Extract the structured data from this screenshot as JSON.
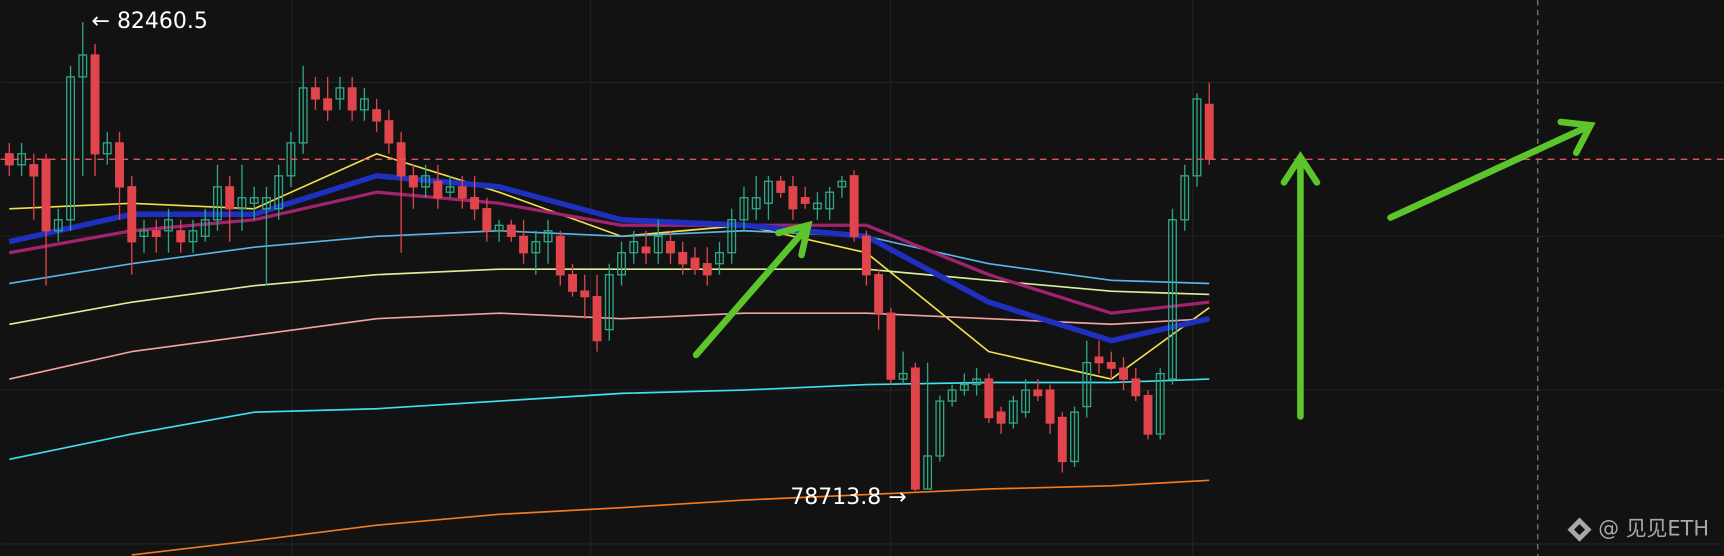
{
  "chart_data": {
    "type": "candlestick",
    "colors": {
      "up": "#2ea787",
      "down": "#e0454c"
    },
    "open": [
      81408,
      81320,
      81320,
      81364,
      80793,
      80881,
      82022,
      82197,
      81408,
      81495,
      81144,
      80749,
      80793,
      80793,
      80793,
      80706,
      80749,
      80881,
      81144,
      80969,
      81013,
      80969,
      80969,
      81232,
      81495,
      81934,
      81846,
      81846,
      81934,
      81759,
      81759,
      81671,
      81495,
      81232,
      81144,
      81188,
      81101,
      81144,
      81057,
      80969,
      80793,
      80837,
      80749,
      80618,
      80706,
      80749,
      80442,
      80311,
      80267,
      80004,
      80442,
      80618,
      80662,
      80618,
      80706,
      80618,
      80574,
      80530,
      80530,
      80618,
      80881,
      80969,
      81013,
      81188,
      81144,
      81057,
      80969,
      80969,
      81144,
      81232,
      80749,
      80442,
      80135,
      79609,
      79696,
      78731,
      78995,
      79433,
      79521,
      79565,
      79609,
      79345,
      79258,
      79345,
      79521,
      79521,
      79302,
      78951,
      79389,
      79784,
      79740,
      79696,
      79609,
      79477,
      79170,
      79609,
      80881,
      81232,
      81802
    ],
    "high": [
      81495,
      81495,
      81408,
      81408,
      80969,
      82110,
      82460.5,
      82285,
      81583,
      81583,
      81232,
      80881,
      80881,
      80969,
      80881,
      80881,
      80969,
      81320,
      81232,
      81320,
      81144,
      81144,
      81320,
      81583,
      82110,
      82022,
      82022,
      82022,
      82022,
      81934,
      81846,
      81759,
      81583,
      81320,
      81320,
      81320,
      81232,
      81232,
      81232,
      81057,
      80881,
      80881,
      80881,
      80793,
      80881,
      80793,
      80530,
      80442,
      80442,
      80530,
      80706,
      80793,
      80793,
      80881,
      80793,
      80706,
      80662,
      80662,
      80706,
      80969,
      81144,
      81232,
      81232,
      81232,
      81232,
      81144,
      81101,
      81144,
      81232,
      81276,
      80793,
      80486,
      80179,
      79828,
      79740,
      79740,
      79477,
      79565,
      79653,
      79696,
      79653,
      79389,
      79477,
      79609,
      79609,
      79565,
      79345,
      79389,
      79916,
      79916,
      79828,
      79784,
      79696,
      79521,
      79696,
      80969,
      81320,
      81890,
      81978
    ],
    "low": [
      81232,
      81232,
      80881,
      80355,
      80706,
      80793,
      81232,
      81232,
      81320,
      80881,
      80442,
      80618,
      80618,
      80618,
      80618,
      80618,
      80706,
      80793,
      80706,
      80793,
      80881,
      80355,
      80881,
      81144,
      81408,
      81759,
      81671,
      81759,
      81671,
      81671,
      81583,
      81408,
      80618,
      80969,
      81057,
      80969,
      81057,
      80969,
      80881,
      80706,
      80706,
      80706,
      80530,
      80442,
      80530,
      80355,
      80267,
      80091,
      79828,
      79916,
      80355,
      80530,
      80530,
      80530,
      80530,
      80442,
      80442,
      80355,
      80442,
      80530,
      80793,
      80881,
      80881,
      81057,
      80881,
      80969,
      80881,
      80881,
      81057,
      80706,
      80355,
      80004,
      79565,
      79565,
      78713.8,
      78731,
      78951,
      79389,
      79477,
      79477,
      79258,
      79170,
      79214,
      79302,
      79433,
      79170,
      78863,
      78907,
      79302,
      79653,
      79609,
      79521,
      79433,
      79126,
      79126,
      79565,
      80793,
      81144,
      81320
    ],
    "close": [
      81320,
      81408,
      81232,
      80793,
      80881,
      82022,
      82197,
      81408,
      81495,
      81144,
      80706,
      80793,
      80749,
      80881,
      80706,
      80793,
      80881,
      81144,
      80969,
      81057,
      81057,
      81057,
      81232,
      81495,
      81934,
      81846,
      81759,
      81934,
      81759,
      81846,
      81671,
      81495,
      81232,
      81144,
      81232,
      81057,
      81144,
      81057,
      80969,
      80793,
      80837,
      80749,
      80618,
      80706,
      80793,
      80442,
      80311,
      80267,
      79916,
      80442,
      80618,
      80706,
      80618,
      80749,
      80618,
      80530,
      80486,
      80442,
      80618,
      80881,
      81057,
      81057,
      81188,
      81101,
      80969,
      81013,
      81013,
      81101,
      81188,
      80749,
      80442,
      80135,
      79609,
      79653,
      78731,
      78995,
      79433,
      79521,
      79565,
      79609,
      79302,
      79258,
      79433,
      79521,
      79477,
      79258,
      78951,
      79345,
      79740,
      79740,
      79696,
      79609,
      79477,
      79170,
      79653,
      80881,
      81232,
      81846,
      81364
    ],
    "ma_lines": [
      {
        "color": "#f2df4a",
        "width": 1.5,
        "x": [
          0,
          10,
          20,
          30,
          40,
          50,
          60,
          70,
          80,
          90,
          98
        ],
        "values": [
          80969,
          81013,
          80969,
          81408,
          81101,
          80749,
          80837,
          80618,
          79828,
          79609,
          80179
        ]
      },
      {
        "color": "#5ab4ea",
        "width": 1.5,
        "x": [
          0,
          10,
          20,
          30,
          40,
          50,
          60,
          70,
          80,
          90,
          98
        ],
        "values": [
          80372,
          80530,
          80662,
          80749,
          80793,
          80749,
          80793,
          80749,
          80530,
          80398,
          80372
        ]
      },
      {
        "color": "#d9ef9c",
        "width": 1.5,
        "x": [
          0,
          10,
          20,
          30,
          40,
          50,
          60,
          70,
          80,
          90,
          98
        ],
        "values": [
          80047,
          80223,
          80355,
          80442,
          80486,
          80486,
          80486,
          80486,
          80398,
          80311,
          80284
        ]
      },
      {
        "color": "#f2a3a3",
        "width": 1.5,
        "x": [
          0,
          10,
          20,
          30,
          40,
          50,
          60,
          70,
          80,
          90,
          98
        ],
        "values": [
          79609,
          79828,
          79960,
          80091,
          80135,
          80091,
          80135,
          80135,
          80091,
          80047,
          80091
        ]
      },
      {
        "color": "#3fe0f0",
        "width": 1.5,
        "x": [
          0,
          10,
          20,
          30,
          40,
          50,
          60,
          70,
          80,
          90,
          98
        ],
        "values": [
          78968,
          79170,
          79345,
          79372,
          79433,
          79495,
          79521,
          79565,
          79582,
          79582,
          79609
        ]
      },
      {
        "color": "#f07a20",
        "width": 1.5,
        "x": [
          0,
          10,
          20,
          30,
          40,
          50,
          60,
          70,
          80,
          90,
          98
        ],
        "values": [
          null,
          78205,
          78319,
          78442,
          78529,
          78582,
          78643,
          78687,
          78731,
          78757,
          78801
        ]
      },
      {
        "color": "#a3226f",
        "width": 3,
        "x": [
          0,
          10,
          20,
          30,
          40,
          50,
          60,
          70,
          80,
          90,
          98
        ],
        "values": [
          80618,
          80793,
          80881,
          81101,
          81013,
          80837,
          80837,
          80837,
          80442,
          80135,
          80223
        ]
      },
      {
        "color": "#1f2fc0",
        "width": 5,
        "x": [
          0,
          10,
          20,
          30,
          40,
          50,
          60,
          70,
          80,
          90,
          98
        ],
        "values": [
          80706,
          80925,
          80925,
          81232,
          81144,
          80881,
          80837,
          80749,
          80223,
          79916,
          80091
        ]
      }
    ],
    "price_line": 81364,
    "high_label": "← 82460.5",
    "low_label": "78713.8 →",
    "watermark": "@ 见见ETH"
  }
}
